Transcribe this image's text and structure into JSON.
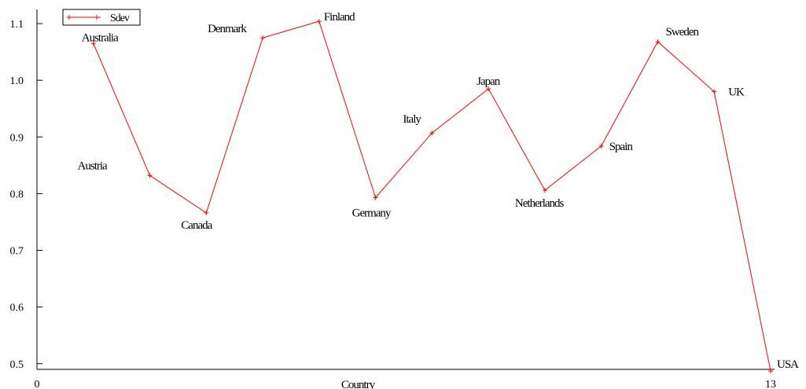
{
  "chart_data": {
    "type": "line",
    "title": "",
    "xlabel": "Country",
    "ylabel": "",
    "xlim": [
      0,
      13
    ],
    "ylim": [
      0.49,
      1.125
    ],
    "x_ticks": [
      "0",
      "13"
    ],
    "y_ticks": [
      "0.5",
      "0.6",
      "0.7",
      "0.8",
      "0.9",
      "1.0",
      "1.1"
    ],
    "y_tick_values": [
      0.5,
      0.6,
      0.7,
      0.8,
      0.9,
      1.0,
      1.1
    ],
    "grid": false,
    "legend": "top-left",
    "series": [
      {
        "name": "Sdev",
        "color": "#ff0000",
        "marker": "plus",
        "points": [
          {
            "x": 1,
            "y": 1.065,
            "label": "Australia"
          },
          {
            "x": 2,
            "y": 0.832,
            "label": "Austria"
          },
          {
            "x": 3,
            "y": 0.766,
            "label": "Canada"
          },
          {
            "x": 4,
            "y": 1.075,
            "label": "Denmark"
          },
          {
            "x": 5,
            "y": 1.104,
            "label": "Finland"
          },
          {
            "x": 6,
            "y": 0.793,
            "label": "Germany"
          },
          {
            "x": 7,
            "y": 0.907,
            "label": "Italy"
          },
          {
            "x": 8,
            "y": 0.985,
            "label": "Japan"
          },
          {
            "x": 9,
            "y": 0.806,
            "label": "Netherlands"
          },
          {
            "x": 10,
            "y": 0.884,
            "label": "Spain"
          },
          {
            "x": 11,
            "y": 1.068,
            "label": "Sweden"
          },
          {
            "x": 12,
            "y": 0.98,
            "label": "UK"
          },
          {
            "x": 13,
            "y": 0.487,
            "label": "USA"
          }
        ]
      }
    ]
  }
}
